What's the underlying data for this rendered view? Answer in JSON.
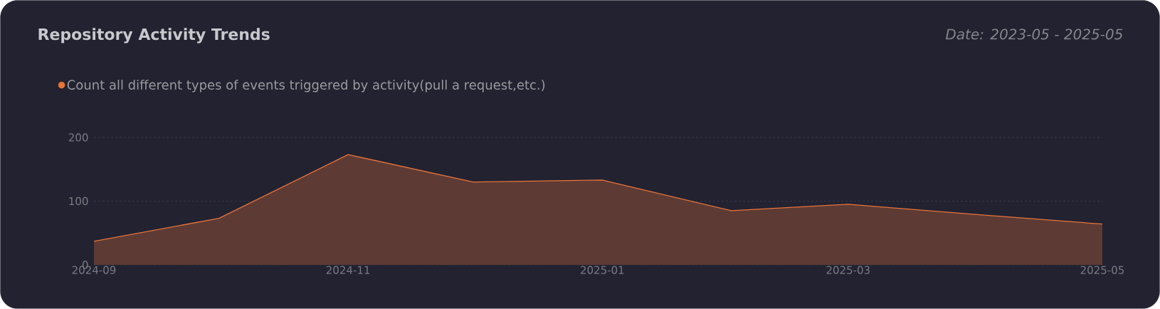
{
  "chart_data": {
    "type": "area",
    "title": "Repository Activity Trends",
    "subtitle": "Date: 2023-05 - 2025-05",
    "x": [
      "2024-09",
      "2024-10",
      "2024-11",
      "2024-12",
      "2025-01",
      "2025-02",
      "2025-03",
      "2025-04",
      "2025-05"
    ],
    "series": [
      {
        "name": "Count all different types of events triggered by activity(pull a request,etc.)",
        "color": "#e8743b",
        "values": [
          37,
          73,
          173,
          130,
          133,
          85,
          95,
          79,
          64
        ]
      }
    ],
    "xlim": [
      "2024-09",
      "2025-05"
    ],
    "xticks": [
      "2024-09",
      "2024-11",
      "2025-01",
      "2025-03",
      "2025-05"
    ],
    "ylim": [
      0,
      200
    ],
    "yticks": [
      0,
      100,
      200
    ],
    "grid": "y",
    "legend": "top left",
    "marker": "none",
    "line_style": "solid"
  }
}
